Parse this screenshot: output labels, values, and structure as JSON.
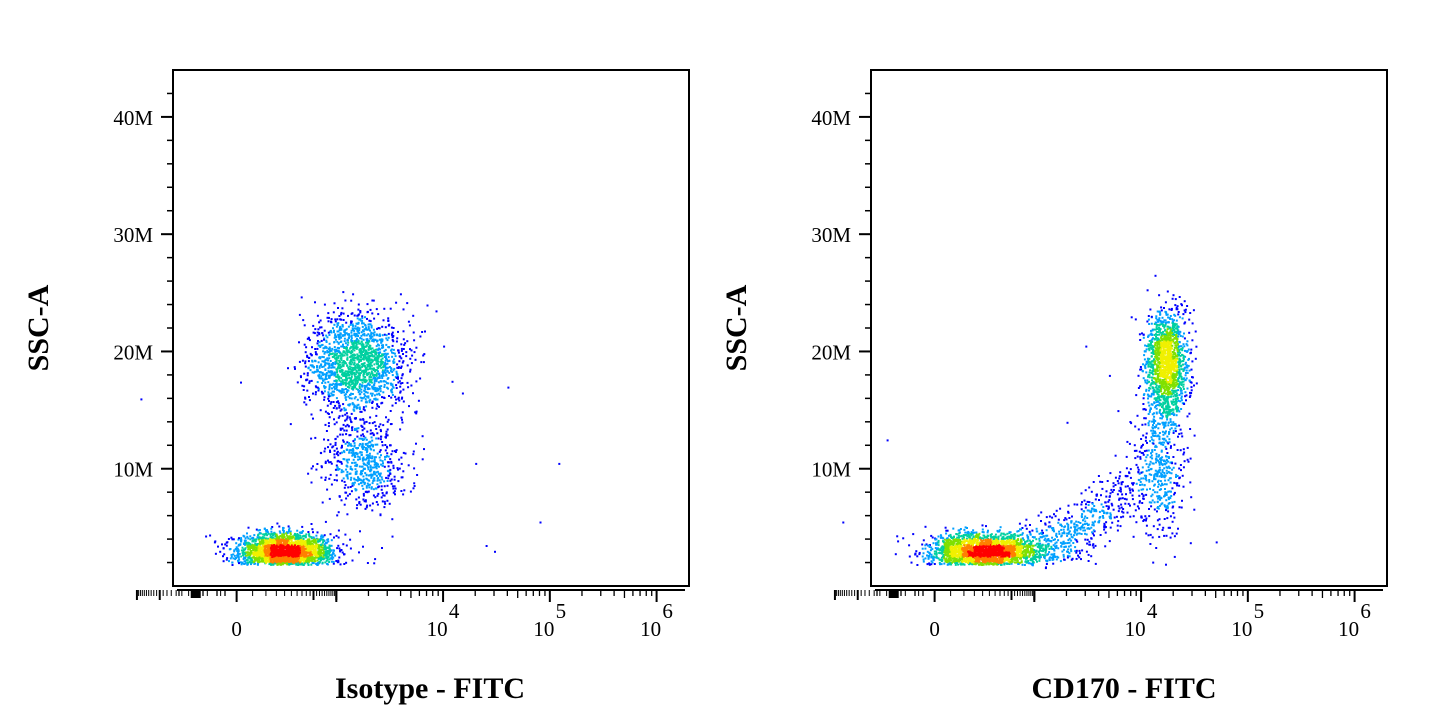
{
  "chart_data": [
    {
      "type": "scatter",
      "title": "",
      "xlabel": "Isotype - FITC",
      "ylabel": "SSC-A",
      "x_scale": "biexponential",
      "xlim": [
        -1000,
        1000000
      ],
      "ylim": [
        0,
        44000000
      ],
      "x_ticks": [
        {
          "value": 0,
          "label": "0",
          "exp": ""
        },
        {
          "value": 10000,
          "label": "10",
          "exp": "4"
        },
        {
          "value": 100000,
          "label": "10",
          "exp": "5"
        },
        {
          "value": 1000000,
          "label": "10",
          "exp": "6"
        }
      ],
      "y_ticks": [
        {
          "value": 10000000,
          "label": "10M"
        },
        {
          "value": 20000000,
          "label": "20M"
        },
        {
          "value": 30000000,
          "label": "30M"
        },
        {
          "value": 40000000,
          "label": "40M"
        }
      ],
      "grid": false,
      "legend": "none",
      "colormap": [
        "#0000ff",
        "#00a0ff",
        "#00d0a0",
        "#80e000",
        "#f0f000",
        "#ff8000",
        "#ff0000"
      ],
      "populations": [
        {
          "x_center": 200,
          "y_center": 3000000,
          "count": 2600
        },
        {
          "x_center": 1500,
          "y_center": 19000000,
          "count": 1700
        },
        {
          "x_center": 1800,
          "y_center": 10500000,
          "count": 600
        }
      ],
      "outliers": [
        [
          7000,
          24000000
        ],
        [
          8500,
          23500000
        ],
        [
          10000,
          20500000
        ],
        [
          12000,
          17500000
        ],
        [
          15000,
          16500000
        ],
        [
          20000,
          10500000
        ],
        [
          25000,
          3500000
        ],
        [
          40000,
          17000000
        ],
        [
          80000,
          5500000
        ],
        [
          120000,
          10500000
        ],
        [
          30000,
          3000000
        ],
        [
          -900,
          16000000
        ]
      ]
    },
    {
      "type": "scatter",
      "title": "",
      "xlabel": "CD170 - FITC",
      "ylabel": "SSC-A",
      "x_scale": "biexponential",
      "xlim": [
        -1000,
        1000000
      ],
      "ylim": [
        0,
        44000000
      ],
      "x_ticks": [
        {
          "value": 0,
          "label": "0",
          "exp": ""
        },
        {
          "value": 10000,
          "label": "10",
          "exp": "4"
        },
        {
          "value": 100000,
          "label": "10",
          "exp": "5"
        },
        {
          "value": 1000000,
          "label": "10",
          "exp": "6"
        }
      ],
      "y_ticks": [
        {
          "value": 10000000,
          "label": "10M"
        },
        {
          "value": 20000000,
          "label": "20M"
        },
        {
          "value": 30000000,
          "label": "30M"
        },
        {
          "value": 40000000,
          "label": "40M"
        }
      ],
      "grid": false,
      "legend": "none",
      "colormap": [
        "#0000ff",
        "#00a0ff",
        "#00d0a0",
        "#80e000",
        "#f0f000",
        "#ff8000",
        "#ff0000"
      ],
      "populations": [
        {
          "x_center": 150,
          "y_center": 3000000,
          "count": 2600
        },
        {
          "x_center": 17000,
          "y_center": 19000000,
          "count": 1500
        },
        {
          "x_center": 15000,
          "y_center": 11000000,
          "count": 500
        }
      ],
      "outliers": [
        [
          5000,
          18000000
        ],
        [
          6000,
          15000000
        ],
        [
          8000,
          23000000
        ],
        [
          3000,
          20500000
        ],
        [
          -200,
          12500000
        ],
        [
          50000,
          3800000
        ],
        [
          -800,
          5500000
        ],
        [
          2000,
          14000000
        ]
      ]
    }
  ]
}
